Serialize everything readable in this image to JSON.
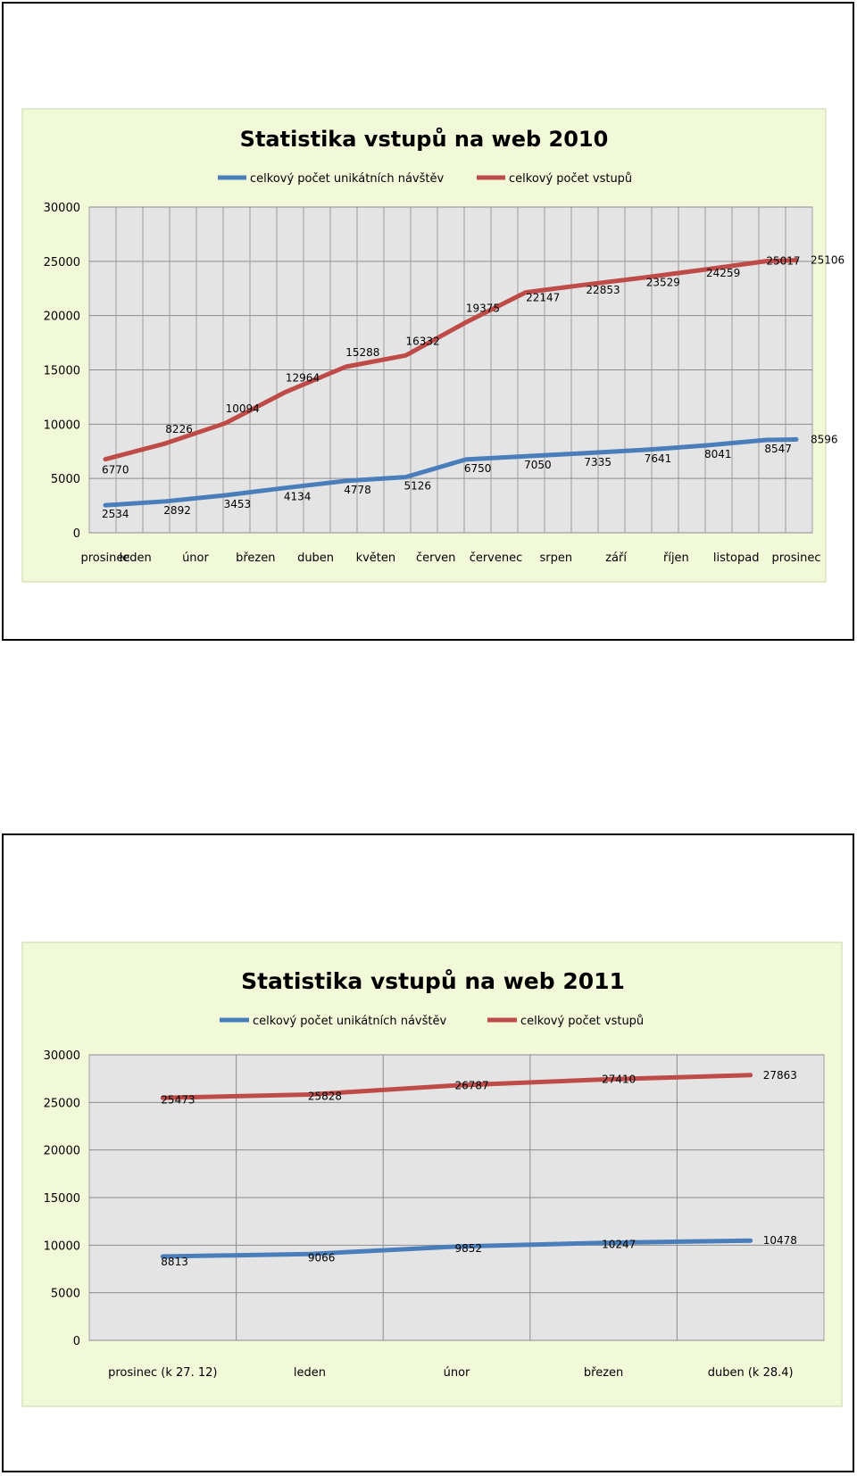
{
  "chart_data": [
    {
      "type": "line",
      "title": "Statistika vstupů na web 2010",
      "categories": [
        "prosinec",
        "leden",
        "",
        "únor",
        "",
        "březen",
        "",
        "duben",
        "",
        "květen",
        "",
        "červen",
        "",
        "červenec",
        "",
        "srpen",
        "",
        "září",
        "",
        "říjen",
        "",
        "listopad",
        "",
        "prosinec"
      ],
      "ylim": [
        0,
        30000
      ],
      "yticks": [
        0,
        5000,
        10000,
        15000,
        20000,
        25000,
        30000
      ],
      "grid": true,
      "legend_position": "top",
      "series": [
        {
          "name": "celkový počet unikátních návštěv",
          "color": "#4a7ebb",
          "points": [
            {
              "x": 0,
              "y": 2534,
              "label": "2534"
            },
            {
              "x": 2,
              "y": 2892,
              "label": "2892"
            },
            {
              "x": 4,
              "y": 3453,
              "label": "3453"
            },
            {
              "x": 6,
              "y": 4134,
              "label": "4134"
            },
            {
              "x": 8,
              "y": 4778,
              "label": "4778"
            },
            {
              "x": 10,
              "y": 5126,
              "label": "5126"
            },
            {
              "x": 12,
              "y": 6750,
              "label": "6750"
            },
            {
              "x": 14,
              "y": 7050,
              "label": "7050"
            },
            {
              "x": 16,
              "y": 7335,
              "label": "7335"
            },
            {
              "x": 18,
              "y": 7641,
              "label": "7641"
            },
            {
              "x": 20,
              "y": 8041,
              "label": "8041"
            },
            {
              "x": 22,
              "y": 8547,
              "label": "8547"
            },
            {
              "x": 23,
              "y": 8596,
              "label": "8596"
            }
          ]
        },
        {
          "name": "celkový počet vstupů",
          "color": "#be4b48",
          "points": [
            {
              "x": 0,
              "y": 6770,
              "label": "6770"
            },
            {
              "x": 2,
              "y": 8226,
              "label": "8226"
            },
            {
              "x": 4,
              "y": 10094,
              "label": "10094"
            },
            {
              "x": 6,
              "y": 12964,
              "label": "12964"
            },
            {
              "x": 8,
              "y": 15288,
              "label": "15288"
            },
            {
              "x": 10,
              "y": 16332,
              "label": "16332"
            },
            {
              "x": 12,
              "y": 19375,
              "label": "19375"
            },
            {
              "x": 14,
              "y": 22147,
              "label": "22147"
            },
            {
              "x": 16,
              "y": 22853,
              "label": "22853"
            },
            {
              "x": 18,
              "y": 23529,
              "label": "23529"
            },
            {
              "x": 20,
              "y": 24259,
              "label": "24259"
            },
            {
              "x": 22,
              "y": 25017,
              "label": "25017"
            },
            {
              "x": 23,
              "y": 25106,
              "label": "25106"
            }
          ]
        }
      ]
    },
    {
      "type": "line",
      "title": "Statistika vstupů na web 2011",
      "categories": [
        "prosinec (k 27. 12)",
        "leden",
        "únor",
        "březen",
        "duben (k 28.4)"
      ],
      "ylim": [
        0,
        30000
      ],
      "yticks": [
        0,
        5000,
        10000,
        15000,
        20000,
        25000,
        30000
      ],
      "grid": true,
      "legend_position": "top",
      "series": [
        {
          "name": "celkový počet unikátních návštěv",
          "color": "#4a7ebb",
          "points": [
            {
              "x": 0,
              "y": 8813,
              "label": "8813"
            },
            {
              "x": 1,
              "y": 9066,
              "label": "9066"
            },
            {
              "x": 2,
              "y": 9852,
              "label": "9852"
            },
            {
              "x": 3,
              "y": 10247,
              "label": "10247"
            },
            {
              "x": 4,
              "y": 10478,
              "label": "10478"
            }
          ]
        },
        {
          "name": "celkový počet vstupů",
          "color": "#be4b48",
          "points": [
            {
              "x": 0,
              "y": 25473,
              "label": "25473"
            },
            {
              "x": 1,
              "y": 25828,
              "label": "25828"
            },
            {
              "x": 2,
              "y": 26787,
              "label": "26787"
            },
            {
              "x": 3,
              "y": 27410,
              "label": "27410"
            },
            {
              "x": 4,
              "y": 27863,
              "label": "27863"
            }
          ]
        }
      ]
    }
  ]
}
